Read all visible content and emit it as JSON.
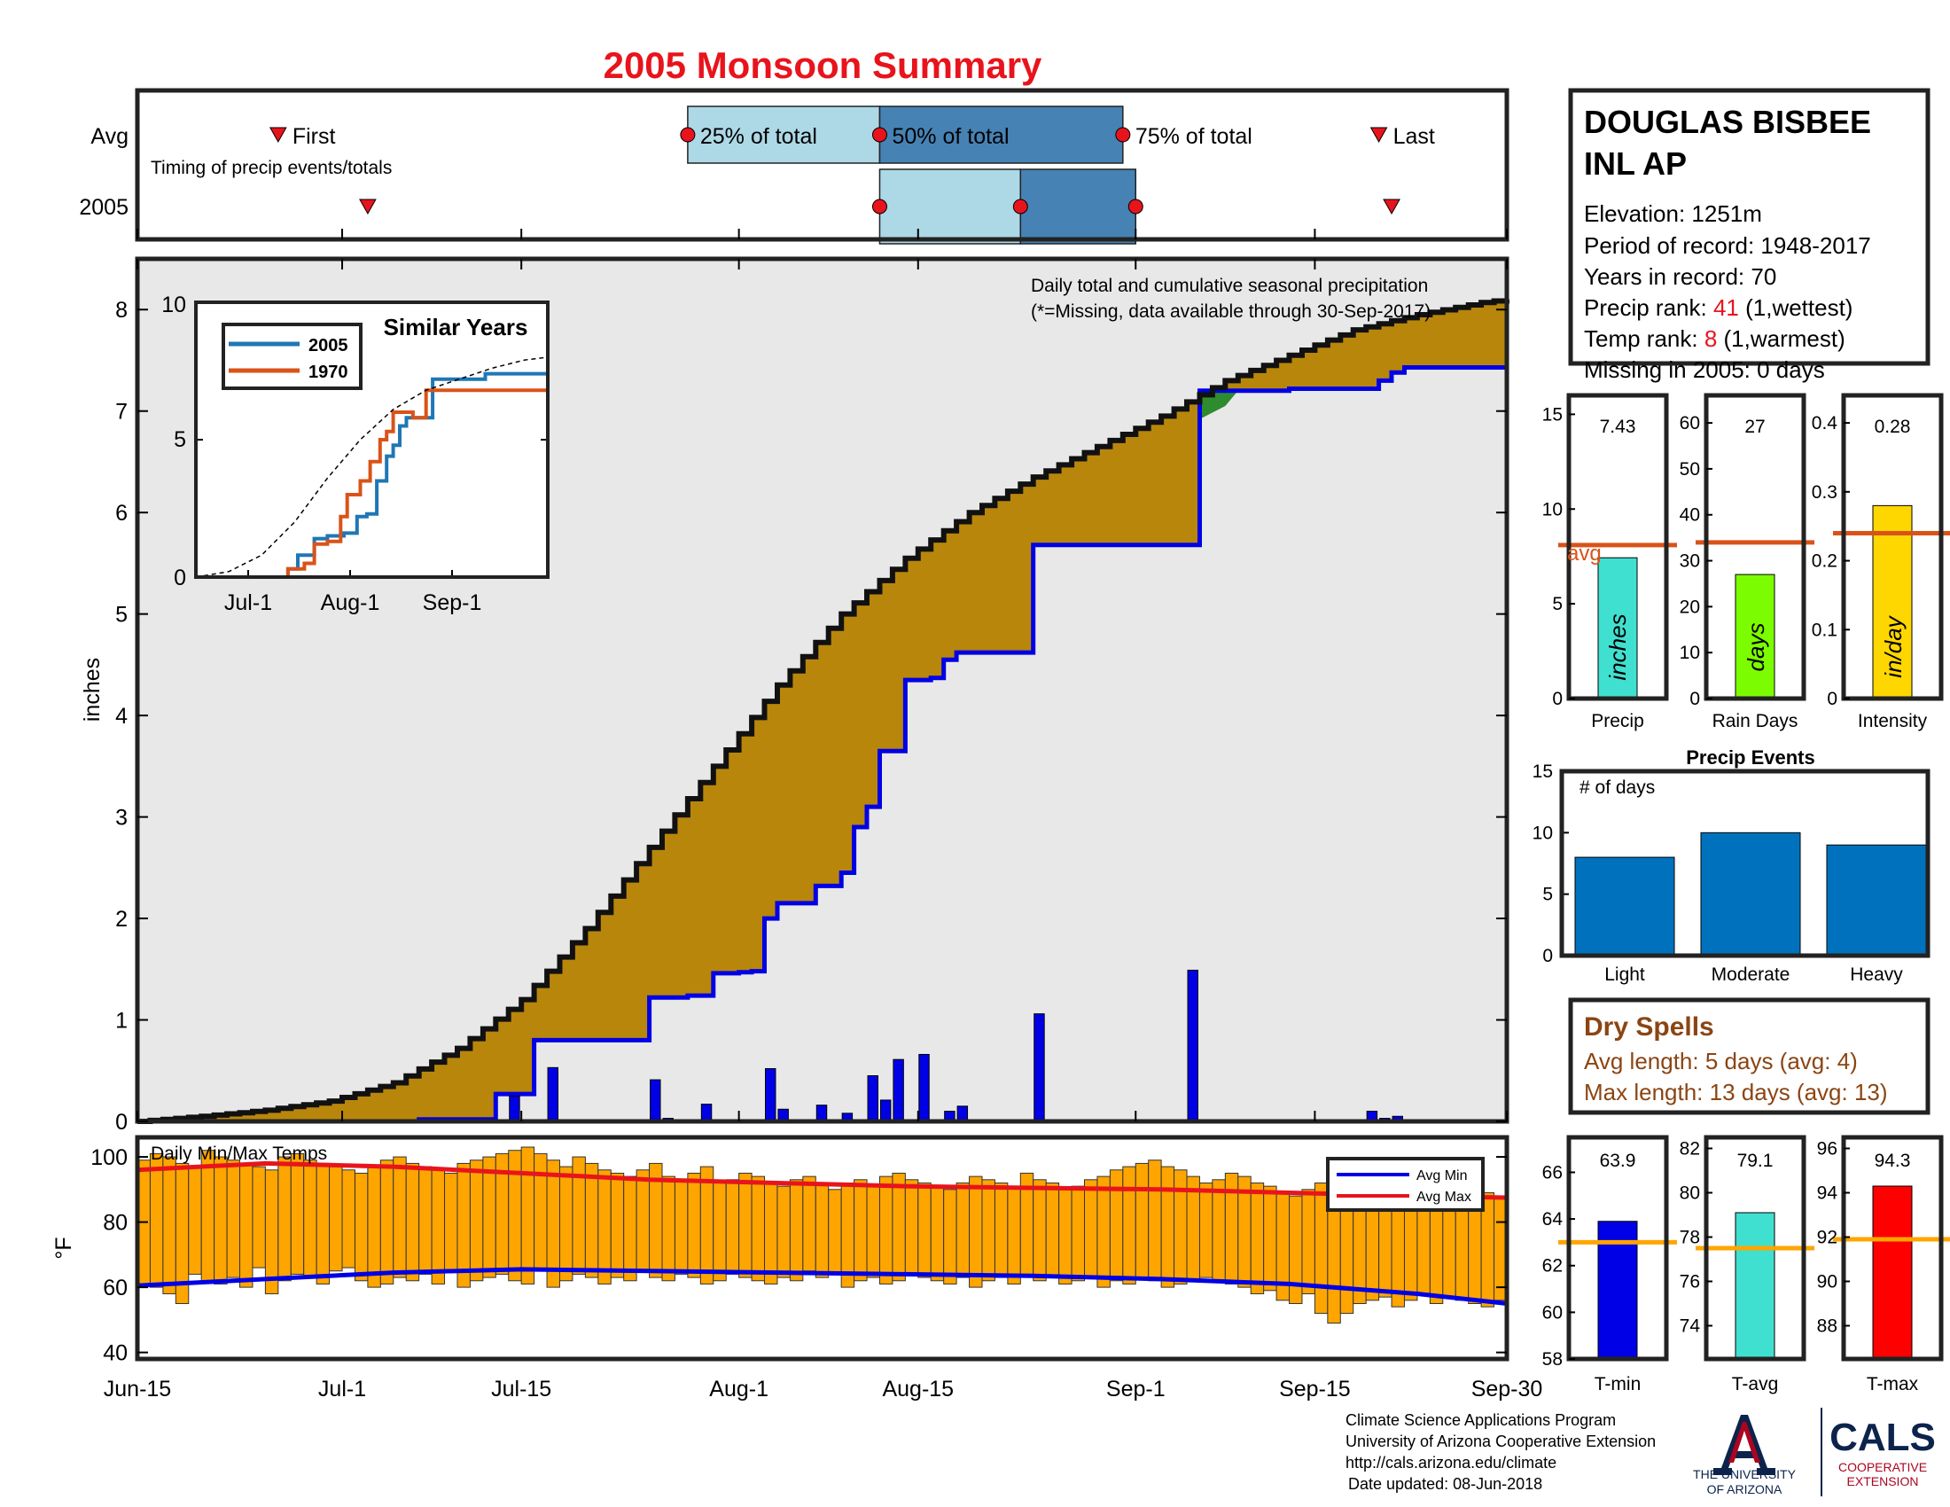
{
  "title": "2005 Monsoon Summary",
  "station": {
    "name_line1": "DOUGLAS BISBEE",
    "name_line2": "INL AP",
    "elevation": "Elevation: 1251m",
    "period": "Period of record: 1948-2017",
    "years": "Years in record: 70",
    "precip_rank_label": "Precip rank: ",
    "precip_rank_value": "41",
    "precip_rank_note": " (1,wettest)",
    "temp_rank_label": "Temp rank: ",
    "temp_rank_value": "8",
    "temp_rank_note": " (1,warmest)",
    "missing": "Missing in 2005: 0 days"
  },
  "timing_panel": {
    "row_labels": [
      "Avg",
      "2005"
    ],
    "first_label": "First",
    "last_label": "Last",
    "q25_label": "25% of total",
    "q50_label": "50% of total",
    "q75_label": "75% of total",
    "subtitle": "Timing of precip events/totals",
    "avg": {
      "first": 11,
      "q25": 43,
      "q50": 58,
      "q75": 77,
      "last": 97
    },
    "y2005": {
      "first": 18,
      "q25": 58,
      "q50": 69,
      "q75": 78,
      "last": 98
    }
  },
  "precip_panel": {
    "header": "Daily total and cumulative seasonal precipitation",
    "missing_note": "(*=Missing, data available through 30-Sep-2017)",
    "ylabel": "inches",
    "y_ticks": [
      "0",
      "1",
      "2",
      "3",
      "4",
      "5",
      "6",
      "7",
      "8"
    ],
    "x_ticks": [
      "Jun-15",
      "Jul-1",
      "Jul-15",
      "Aug-1",
      "Aug-15",
      "Sep-1",
      "Sep-15",
      "Sep-30"
    ],
    "x_tick_days": [
      0,
      16,
      30,
      47,
      61,
      78,
      92,
      107
    ]
  },
  "inset": {
    "title": "Similar Years",
    "legend": [
      "2005",
      "1970"
    ],
    "y_ticks": [
      "0",
      "5",
      "10"
    ],
    "x_ticks": [
      "Jul-1",
      "Aug-1",
      "Sep-1"
    ],
    "colors": {
      "2005": "#1f77b4",
      "1970": "#d95319"
    }
  },
  "temp_panel": {
    "title": "Daily Min/Max Temps",
    "ylabel": "°F",
    "y_ticks": [
      "40",
      "60",
      "80",
      "100"
    ],
    "legend": [
      "Avg Min",
      "Avg Max"
    ]
  },
  "stat_bars": {
    "precip": {
      "value_text": "7.43",
      "label": "Precip",
      "unit": "inches",
      "avg_label": "avg",
      "ticks": [
        "0",
        "5",
        "10",
        "15"
      ]
    },
    "rain_days": {
      "value_text": "27",
      "label": "Rain Days",
      "unit": "days",
      "ticks": [
        "0",
        "10",
        "20",
        "30",
        "40",
        "50",
        "60"
      ]
    },
    "intensity": {
      "value_text": "0.28",
      "label": "Intensity",
      "unit": "in/day",
      "ticks": [
        "0",
        "0.1",
        "0.2",
        "0.3",
        "0.4"
      ]
    }
  },
  "events": {
    "title": "Precip Events",
    "ylabel": "# of days",
    "categories": [
      "Light",
      "Moderate",
      "Heavy"
    ],
    "y_ticks": [
      "0",
      "5",
      "10",
      "15"
    ]
  },
  "dry_spells": {
    "title": "Dry Spells",
    "avg_length": "Avg length: 5 days (avg: 4)",
    "max_length": "Max length: 13 days (avg: 13)"
  },
  "temp_bars": {
    "tmin": {
      "value_text": "63.9",
      "label": "T-min",
      "ticks": [
        "58",
        "60",
        "62",
        "64",
        "66"
      ]
    },
    "tavg": {
      "value_text": "79.1",
      "label": "T-avg",
      "ticks": [
        "74",
        "76",
        "78",
        "80",
        "82"
      ]
    },
    "tmax": {
      "value_text": "94.3",
      "label": "T-max",
      "ticks": [
        "88",
        "90",
        "92",
        "94",
        "96"
      ]
    }
  },
  "footer": {
    "line1": "Climate Science Applications Program",
    "line2": "University of Arizona Cooperative Extension",
    "line3": "http://cals.arizona.edu/climate",
    "line4": "Date updated: 08-Jun-2018",
    "ua_line1": "THE UNIVERSITY",
    "ua_line2": "OF ARIZONA",
    "cals": "CALS",
    "cals_sub1": "COOPERATIVE",
    "cals_sub2": "EXTENSION"
  },
  "chart_data": [
    {
      "type": "area",
      "name": "cumulative precipitation",
      "x_unit": "days since Jun-15",
      "ylim": [
        0,
        8.5
      ],
      "avg_cumulative": [
        [
          0,
          0
        ],
        [
          5,
          0.05
        ],
        [
          10,
          0.11
        ],
        [
          15,
          0.2
        ],
        [
          20,
          0.38
        ],
        [
          25,
          0.72
        ],
        [
          30,
          1.2
        ],
        [
          35,
          1.9
        ],
        [
          40,
          2.7
        ],
        [
          45,
          3.5
        ],
        [
          50,
          4.3
        ],
        [
          55,
          5.0
        ],
        [
          60,
          5.55
        ],
        [
          65,
          6.0
        ],
        [
          70,
          6.35
        ],
        [
          75,
          6.65
        ],
        [
          80,
          6.95
        ],
        [
          85,
          7.3
        ],
        [
          90,
          7.55
        ],
        [
          95,
          7.8
        ],
        [
          100,
          7.95
        ],
        [
          105,
          8.07
        ],
        [
          107,
          8.1
        ]
      ],
      "cumulative_2005": [
        [
          0,
          0
        ],
        [
          22,
          0.02
        ],
        [
          27,
          0.02
        ],
        [
          28,
          0.27
        ],
        [
          30,
          0.27
        ],
        [
          31,
          0.8
        ],
        [
          39,
          0.8
        ],
        [
          40,
          1.22
        ],
        [
          42,
          1.22
        ],
        [
          43,
          1.24
        ],
        [
          44,
          1.24
        ],
        [
          45,
          1.46
        ],
        [
          47,
          1.47
        ],
        [
          48,
          1.48
        ],
        [
          49,
          2.0
        ],
        [
          50,
          2.15
        ],
        [
          53,
          2.32
        ],
        [
          55,
          2.45
        ],
        [
          56,
          2.9
        ],
        [
          57,
          3.1
        ],
        [
          58,
          3.65
        ],
        [
          60,
          4.35
        ],
        [
          62,
          4.37
        ],
        [
          63,
          4.55
        ],
        [
          64,
          4.62
        ],
        [
          69,
          4.62
        ],
        [
          70,
          5.68
        ],
        [
          82,
          5.68
        ],
        [
          83,
          7.2
        ],
        [
          89,
          7.2
        ],
        [
          90,
          7.22
        ],
        [
          96,
          7.22
        ],
        [
          97,
          7.3
        ],
        [
          98,
          7.38
        ],
        [
          99,
          7.43
        ],
        [
          107,
          7.43
        ]
      ],
      "daily_2005": [
        [
          29,
          0.25
        ],
        [
          32,
          0.53
        ],
        [
          40,
          0.41
        ],
        [
          41,
          0.03
        ],
        [
          44,
          0.17
        ],
        [
          49,
          0.52
        ],
        [
          50,
          0.12
        ],
        [
          53,
          0.16
        ],
        [
          55,
          0.08
        ],
        [
          57,
          0.45
        ],
        [
          58,
          0.21
        ],
        [
          59,
          0.61
        ],
        [
          61,
          0.66
        ],
        [
          63,
          0.1
        ],
        [
          64,
          0.15
        ],
        [
          70,
          1.06
        ],
        [
          82,
          1.49
        ],
        [
          96,
          0.1
        ],
        [
          97,
          0.03
        ],
        [
          98,
          0.05
        ]
      ]
    },
    {
      "type": "line",
      "name": "similar years",
      "x_unit": "days since Jun-15",
      "ylim": [
        0,
        10
      ],
      "series": [
        {
          "name": "2005",
          "values": [
            [
              0,
              0
            ],
            [
              22,
              0
            ],
            [
              28,
              0.3
            ],
            [
              31,
              0.8
            ],
            [
              36,
              1.4
            ],
            [
              40,
              1.5
            ],
            [
              45,
              1.6
            ],
            [
              49,
              2.2
            ],
            [
              52,
              2.3
            ],
            [
              55,
              3.5
            ],
            [
              58,
              4.4
            ],
            [
              60,
              4.8
            ],
            [
              62,
              5.5
            ],
            [
              64,
              5.8
            ],
            [
              68,
              5.8
            ],
            [
              70,
              5.8
            ],
            [
              72,
              7.2
            ],
            [
              86,
              7.2
            ],
            [
              88,
              7.4
            ],
            [
              107,
              7.45
            ]
          ]
        },
        {
          "name": "1970",
          "values": [
            [
              0,
              0
            ],
            [
              25,
              0
            ],
            [
              28,
              0.3
            ],
            [
              33,
              0.5
            ],
            [
              36,
              1.2
            ],
            [
              40,
              1.3
            ],
            [
              44,
              2.2
            ],
            [
              46,
              3.0
            ],
            [
              50,
              3.5
            ],
            [
              53,
              4.2
            ],
            [
              56,
              5.0
            ],
            [
              58,
              5.3
            ],
            [
              60,
              6.0
            ],
            [
              64,
              6.0
            ],
            [
              66,
              5.8
            ],
            [
              70,
              6.8
            ],
            [
              78,
              6.8
            ],
            [
              84,
              6.8
            ],
            [
              86,
              6.8
            ],
            [
              107,
              6.8
            ]
          ]
        },
        {
          "name": "avg",
          "values": [
            [
              0,
              0
            ],
            [
              10,
              0.2
            ],
            [
              20,
              0.8
            ],
            [
              30,
              2.0
            ],
            [
              40,
              3.6
            ],
            [
              50,
              5.0
            ],
            [
              60,
              6.1
            ],
            [
              70,
              6.8
            ],
            [
              80,
              7.2
            ],
            [
              90,
              7.6
            ],
            [
              100,
              7.9
            ],
            [
              107,
              8.0
            ]
          ]
        }
      ]
    },
    {
      "type": "bar",
      "name": "daily temperatures",
      "x_unit": "days since Jun-15",
      "ylim": [
        38,
        106
      ],
      "avg_max": [
        [
          0,
          96
        ],
        [
          10,
          98
        ],
        [
          20,
          97
        ],
        [
          30,
          95
        ],
        [
          40,
          93
        ],
        [
          50,
          92
        ],
        [
          60,
          91
        ],
        [
          70,
          90.5
        ],
        [
          80,
          90
        ],
        [
          90,
          89
        ],
        [
          100,
          88
        ],
        [
          107,
          87.5
        ]
      ],
      "avg_min": [
        [
          0,
          60.5
        ],
        [
          10,
          62.5
        ],
        [
          20,
          64.5
        ],
        [
          30,
          65.5
        ],
        [
          40,
          65
        ],
        [
          50,
          64.5
        ],
        [
          60,
          64
        ],
        [
          70,
          63.5
        ],
        [
          80,
          62.5
        ],
        [
          90,
          61
        ],
        [
          100,
          58
        ],
        [
          107,
          55
        ]
      ]
    },
    {
      "type": "bar",
      "name": "precip stats",
      "categories": [
        "Precip",
        "Rain Days",
        "Intensity"
      ],
      "values": [
        7.43,
        27,
        0.28
      ],
      "averages": [
        8.1,
        34,
        0.24
      ],
      "ylims": [
        [
          0,
          16
        ],
        [
          0,
          66
        ],
        [
          0,
          0.44
        ]
      ]
    },
    {
      "type": "bar",
      "name": "precip events",
      "categories": [
        "Light",
        "Moderate",
        "Heavy"
      ],
      "values": [
        8,
        10,
        9
      ],
      "ylim": [
        0,
        15
      ]
    },
    {
      "type": "bar",
      "name": "temperature stats",
      "categories": [
        "T-min",
        "T-avg",
        "T-max"
      ],
      "values": [
        63.9,
        79.1,
        94.3
      ],
      "averages": [
        63.0,
        77.5,
        91.9
      ],
      "ylims": [
        [
          58,
          67.5
        ],
        [
          72.5,
          82.5
        ],
        [
          86.5,
          96.5
        ]
      ]
    }
  ]
}
